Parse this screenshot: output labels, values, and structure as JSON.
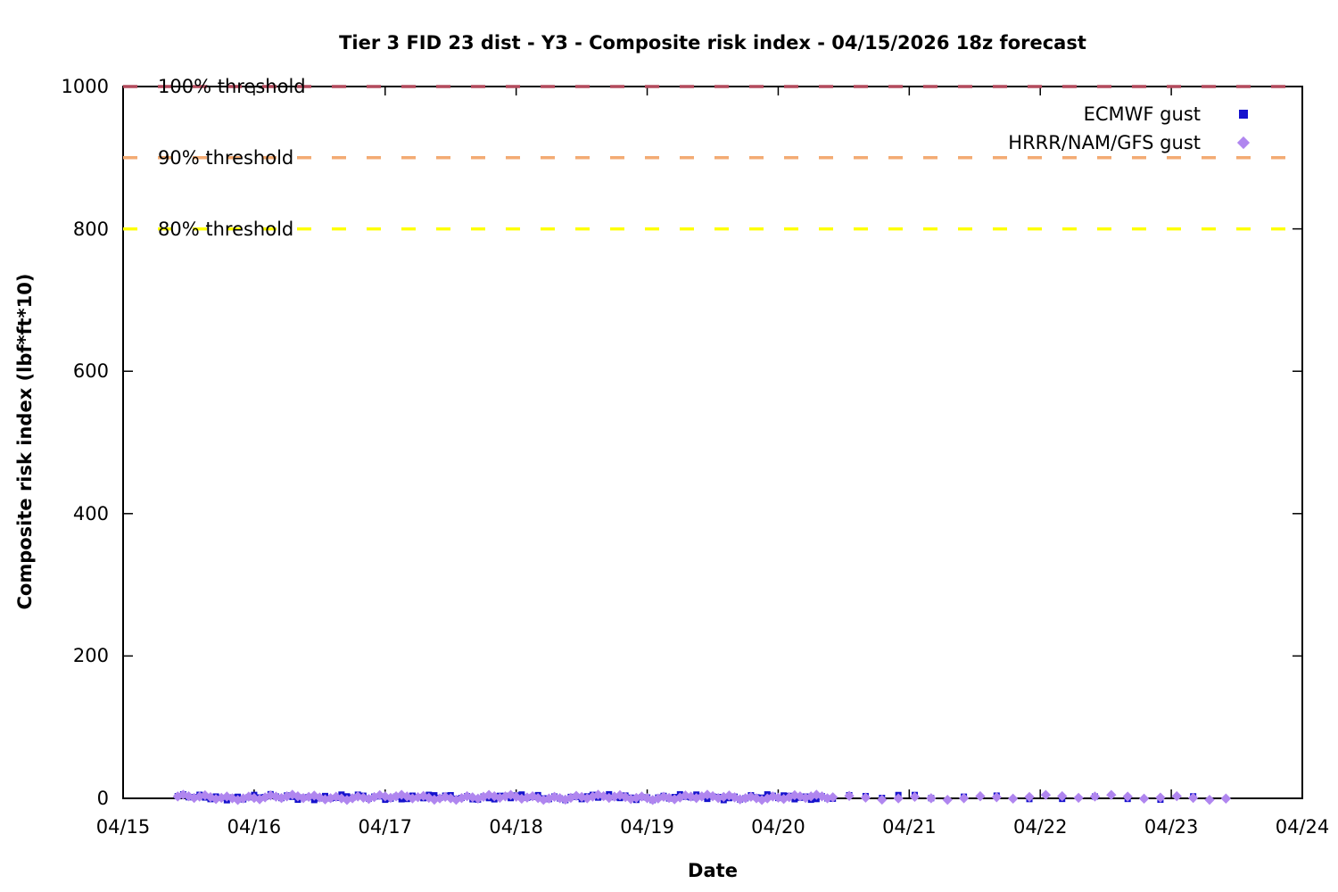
{
  "chart_data": {
    "type": "scatter",
    "title": "Tier 3 FID 23 dist - Y3 - Composite risk index - 04/15/2026 18z forecast",
    "xlabel": "Date",
    "ylabel": "Composite risk index (lbf*ft*10)",
    "x_tick_labels": [
      "04/15",
      "04/16",
      "04/17",
      "04/18",
      "04/19",
      "04/20",
      "04/21",
      "04/22",
      "04/23",
      "04/24"
    ],
    "y_tick_labels": [
      "0",
      "200",
      "400",
      "600",
      "800",
      "1000"
    ],
    "y_tick_values": [
      0,
      200,
      400,
      600,
      800,
      1000
    ],
    "ylim": [
      0,
      1000
    ],
    "x_range_days": 9,
    "grid": false,
    "background_color": "#ffffff",
    "legend_position": "top-right-inside",
    "thresholds": [
      {
        "label": "100% threshold",
        "value": 1000,
        "color": "#b24a5c",
        "style": "dashed"
      },
      {
        "label": "90% threshold",
        "value": 900,
        "color": "#f3ab73",
        "style": "dashed"
      },
      {
        "label": "80% threshold",
        "value": 800,
        "color": "#ffff00",
        "style": "dashed"
      }
    ],
    "series": [
      {
        "name": "ECMWF gust",
        "marker": "square",
        "color": "#1512cd",
        "values_near": 0,
        "value_jitter_range": [
          -3,
          6
        ],
        "segments_days_from_04_15": [
          {
            "start": 0.417,
            "end": 5.417,
            "step_hours": 1
          },
          {
            "start": 5.542,
            "end": 6.167,
            "step_hours": 3
          },
          {
            "start": 6.417,
            "end": 8.167,
            "step_hours": 6
          }
        ]
      },
      {
        "name": "HRRR/NAM/GFS gust",
        "marker": "diamond",
        "color": "#b086ef",
        "values_near": 0,
        "value_jitter_range": [
          -3,
          6
        ],
        "segments_days_from_04_15": [
          {
            "start": 0.417,
            "end": 5.417,
            "step_hours": 1
          },
          {
            "start": 5.542,
            "end": 8.417,
            "step_hours": 3
          }
        ]
      }
    ]
  }
}
